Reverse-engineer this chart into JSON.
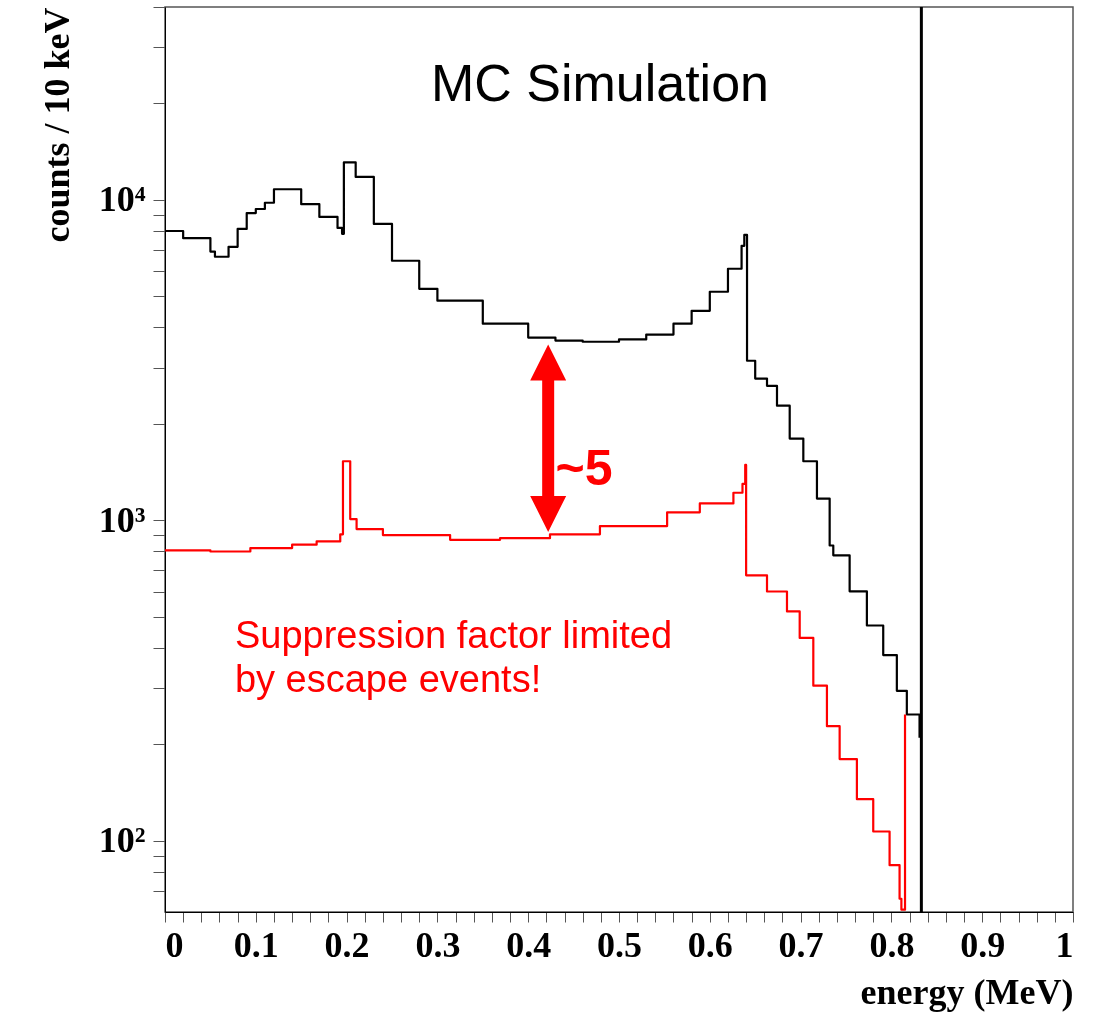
{
  "chart_data": {
    "type": "step",
    "xlabel": "energy (MeV)",
    "ylabel": "counts / 10 keV",
    "log": true,
    "grid": false,
    "xlim": [
      0,
      1
    ],
    "ylim": [
      60,
      40000
    ],
    "xticks": [
      0,
      {
        "value": 0.02,
        "label": null
      },
      {
        "value": 0.04,
        "label": null
      },
      {
        "value": 0.06,
        "label": null
      },
      {
        "value": 0.08,
        "label": null
      },
      0.1,
      {
        "value": 0.12,
        "label": null
      },
      {
        "value": 0.14,
        "label": null
      },
      {
        "value": 0.16,
        "label": null
      },
      {
        "value": 0.18,
        "label": null
      },
      0.2,
      {
        "value": 0.22,
        "label": null
      },
      {
        "value": 0.24,
        "label": null
      },
      {
        "value": 0.26,
        "label": null
      },
      {
        "value": 0.28,
        "label": null
      },
      0.3,
      {
        "value": 0.32,
        "label": null
      },
      {
        "value": 0.34,
        "label": null
      },
      {
        "value": 0.36,
        "label": null
      },
      {
        "value": 0.38,
        "label": null
      },
      0.4,
      {
        "value": 0.42,
        "label": null
      },
      {
        "value": 0.44,
        "label": null
      },
      {
        "value": 0.46,
        "label": null
      },
      {
        "value": 0.48,
        "label": null
      },
      0.5,
      {
        "value": 0.52,
        "label": null
      },
      {
        "value": 0.54,
        "label": null
      },
      {
        "value": 0.56,
        "label": null
      },
      {
        "value": 0.58,
        "label": null
      },
      0.6,
      {
        "value": 0.62,
        "label": null
      },
      {
        "value": 0.64,
        "label": null
      },
      {
        "value": 0.66,
        "label": null
      },
      {
        "value": 0.68,
        "label": null
      },
      0.7,
      {
        "value": 0.72,
        "label": null
      },
      {
        "value": 0.74,
        "label": null
      },
      {
        "value": 0.76,
        "label": null
      },
      {
        "value": 0.78,
        "label": null
      },
      0.8,
      {
        "value": 0.82,
        "label": null
      },
      {
        "value": 0.84,
        "label": null
      },
      {
        "value": 0.86,
        "label": null
      },
      {
        "value": 0.88,
        "label": null
      },
      0.9,
      {
        "value": 0.92,
        "label": null
      },
      {
        "value": 0.94,
        "label": null
      },
      {
        "value": 0.96,
        "label": null
      },
      {
        "value": 0.98,
        "label": null
      },
      1
    ],
    "yticks": [
      {
        "value": 70,
        "label": null
      },
      {
        "value": 80,
        "label": null
      },
      {
        "value": 90,
        "label": null
      },
      {
        "value": 100,
        "label": "10²"
      },
      {
        "value": 200,
        "label": null
      },
      {
        "value": 300,
        "label": null
      },
      {
        "value": 400,
        "label": null
      },
      {
        "value": 500,
        "label": null
      },
      {
        "value": 600,
        "label": null
      },
      {
        "value": 700,
        "label": null
      },
      {
        "value": 800,
        "label": null
      },
      {
        "value": 900,
        "label": null
      },
      {
        "value": 1000,
        "label": "10³"
      },
      {
        "value": 2000,
        "label": null
      },
      {
        "value": 3000,
        "label": null
      },
      {
        "value": 4000,
        "label": null
      },
      {
        "value": 5000,
        "label": null
      },
      {
        "value": 6000,
        "label": null
      },
      {
        "value": 7000,
        "label": null
      },
      {
        "value": 8000,
        "label": null
      },
      {
        "value": 9000,
        "label": null
      },
      {
        "value": 10000,
        "label": "10⁴"
      },
      {
        "value": 20000,
        "label": null
      },
      {
        "value": 30000,
        "label": null
      },
      {
        "value": 40000,
        "label": null
      }
    ],
    "series": [
      {
        "color": "#000000",
        "x": [
          0,
          0.02,
          0.05,
          0.055,
          0.07,
          0.08,
          0.09,
          0.1,
          0.11,
          0.12,
          0.13,
          0.15,
          0.17,
          0.19,
          0.195,
          0.197,
          0.21,
          0.23,
          0.25,
          0.28,
          0.3,
          0.35,
          0.4,
          0.43,
          0.46,
          0.5,
          0.53,
          0.56,
          0.58,
          0.6,
          0.62,
          0.635,
          0.638,
          0.641,
          0.65,
          0.663,
          0.674,
          0.688,
          0.703,
          0.718,
          0.732,
          0.736,
          0.754,
          0.773,
          0.791,
          0.806,
          0.817,
          0.831
        ],
        "values": [
          8000,
          7600,
          6900,
          6650,
          7140,
          8120,
          9100,
          9370,
          9800,
          10800,
          10800,
          9700,
          8850,
          8180,
          7840,
          13100,
          11800,
          8420,
          6460,
          5280,
          4850,
          4110,
          3720,
          3640,
          3610,
          3670,
          3800,
          4110,
          4510,
          5170,
          6100,
          7190,
          7780,
          3150,
          2770,
          2630,
          2280,
          1800,
          1530,
          1170,
          835,
          778,
          601,
          470,
          380,
          294,
          248,
          210
        ]
      },
      {
        "color": "#ff0000",
        "x": [
          0,
          0.05,
          0.094,
          0.14,
          0.167,
          0.193,
          0.196,
          0.204,
          0.211,
          0.24,
          0.314,
          0.369,
          0.424,
          0.479,
          0.553,
          0.589,
          0.626,
          0.636,
          0.639,
          0.64,
          0.663,
          0.685,
          0.699,
          0.714,
          0.729,
          0.743,
          0.762,
          0.78,
          0.798,
          0.809,
          0.811,
          0.815
        ],
        "values": [
          806,
          800,
          820,
          840,
          860,
          905,
          1530,
          1010,
          940,
          900,
          870,
          880,
          905,
          960,
          1060,
          1130,
          1220,
          1300,
          1490,
          674,
          600,
          520,
          430,
          305,
          228,
          180,
          135,
          107,
          84,
          66,
          61,
          248
        ]
      }
    ],
    "ref_lines": [
      {
        "axis": "x",
        "value": 0.833,
        "color": "#000000"
      }
    ],
    "annotations": [
      "MC Simulation",
      "Suppression factor limited\nby escape events!",
      "~5"
    ]
  }
}
